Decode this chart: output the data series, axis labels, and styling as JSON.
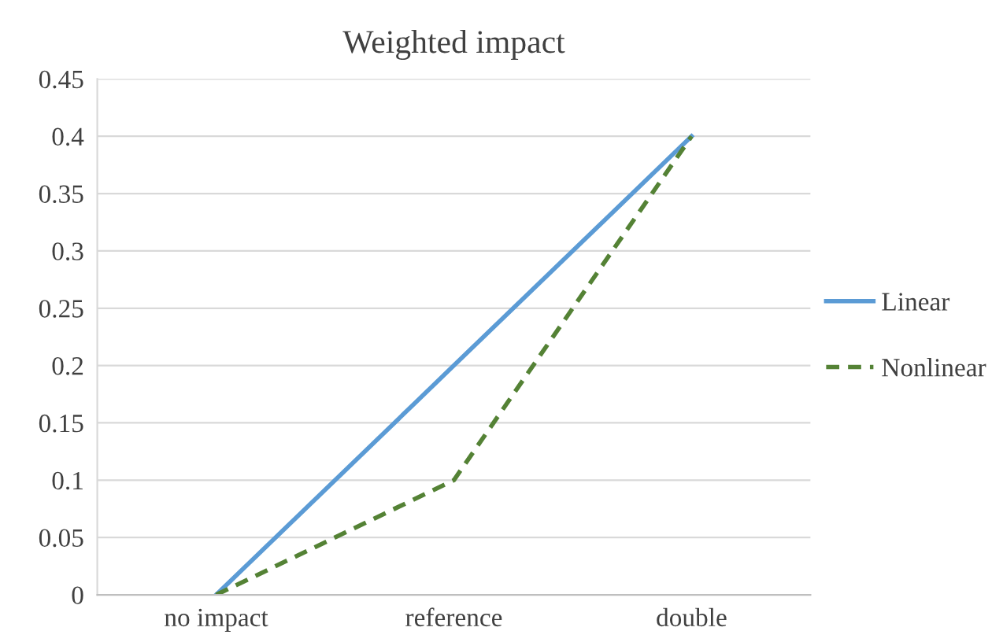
{
  "chart_data": {
    "type": "line",
    "title": "Weighted impact",
    "categories": [
      "no impact",
      "reference",
      "double"
    ],
    "series": [
      {
        "name": "Linear",
        "color": "#5b9bd5",
        "values": [
          0,
          0.2,
          0.4
        ],
        "line_style": "solid"
      },
      {
        "name": "Nonlinear",
        "color": "#548235",
        "values": [
          0,
          0.1,
          0.4
        ],
        "line_style": "dashed"
      }
    ],
    "ylim": [
      0,
      0.45
    ],
    "yticks": [
      0,
      0.05,
      0.1,
      0.15,
      0.2,
      0.25,
      0.3,
      0.35,
      0.4,
      0.45
    ],
    "grid": "y",
    "legend": "right",
    "marker": "none"
  }
}
